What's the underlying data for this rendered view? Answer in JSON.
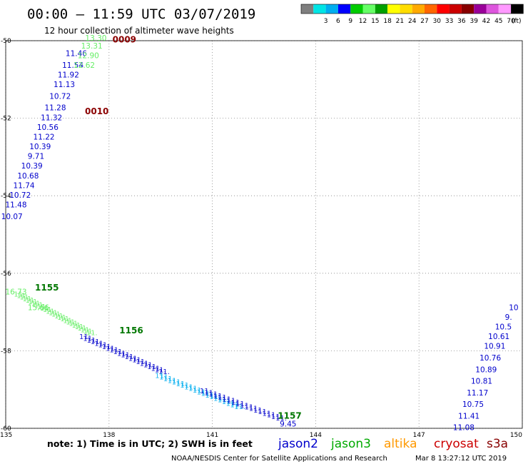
{
  "header": {
    "title": "00:00 – 11:59 UTC 03/07/2019",
    "subtitle": "12 hour collection of altimeter wave heights"
  },
  "legend": {
    "unit": "(ft)",
    "bins": [
      {
        "label": "",
        "color": "#7f7f7f"
      },
      {
        "label": "3",
        "color": "#00e5e5"
      },
      {
        "label": "6",
        "color": "#00aeef"
      },
      {
        "label": "9",
        "color": "#0000ff"
      },
      {
        "label": "12",
        "color": "#00cc00"
      },
      {
        "label": "15",
        "color": "#66ff66"
      },
      {
        "label": "18",
        "color": "#00a000"
      },
      {
        "label": "21",
        "color": "#ffff00"
      },
      {
        "label": "24",
        "color": "#ffdd00"
      },
      {
        "label": "27",
        "color": "#ffaa00"
      },
      {
        "label": "30",
        "color": "#ff6600"
      },
      {
        "label": "33",
        "color": "#ff0000"
      },
      {
        "label": "36",
        "color": "#cc0000"
      },
      {
        "label": "39",
        "color": "#880000"
      },
      {
        "label": "42",
        "color": "#990099"
      },
      {
        "label": "45",
        "color": "#dd55dd"
      },
      {
        "label": "70",
        "color": "#ff99ff"
      },
      {
        "label": "",
        "color": "#000000"
      }
    ]
  },
  "axes": {
    "lon_labels": [
      "135",
      "138",
      "141",
      "144",
      "147",
      "150"
    ],
    "lat_labels": [
      "-50",
      "-52",
      "-54",
      "-56",
      "-58",
      "-60"
    ],
    "lon_range": [
      135,
      150
    ],
    "lat_range": [
      -60,
      -50
    ]
  },
  "tracks": [
    {
      "color": "#0000cc",
      "points": [
        {
          "lat": -50.4,
          "lon": 137.05,
          "value": "11.46"
        },
        {
          "lat": -50.7,
          "lon": 136.95,
          "value": "11.54"
        },
        {
          "lat": -50.95,
          "lon": 136.82,
          "value": "11.92"
        },
        {
          "lat": -51.2,
          "lon": 136.7,
          "value": "11.13"
        },
        {
          "lat": -51.5,
          "lon": 136.58,
          "value": "10.72"
        },
        {
          "lat": -51.8,
          "lon": 136.44,
          "value": "11.28"
        },
        {
          "lat": -52.05,
          "lon": 136.33,
          "value": "11.32"
        },
        {
          "lat": -52.3,
          "lon": 136.22,
          "value": "10.56"
        },
        {
          "lat": -52.55,
          "lon": 136.11,
          "value": "11.22"
        },
        {
          "lat": -52.8,
          "lon": 136.0,
          "value": "10.39"
        },
        {
          "lat": -53.05,
          "lon": 135.88,
          "value": "9.71"
        },
        {
          "lat": -53.3,
          "lon": 135.76,
          "value": "10.39"
        },
        {
          "lat": -53.55,
          "lon": 135.65,
          "value": "10.68"
        },
        {
          "lat": -53.8,
          "lon": 135.53,
          "value": "11.74"
        },
        {
          "lat": -54.05,
          "lon": 135.42,
          "value": "10.72"
        },
        {
          "lat": -54.3,
          "lon": 135.3,
          "value": "11.48"
        },
        {
          "lat": -54.6,
          "lon": 135.18,
          "value": "10.07"
        }
      ]
    },
    {
      "color": "#66ee66",
      "points": [
        {
          "lat": -50.0,
          "lon": 137.62,
          "value": "13.30"
        },
        {
          "lat": -50.2,
          "lon": 137.5,
          "value": "13.31"
        },
        {
          "lat": -50.45,
          "lon": 137.4,
          "value": "12.90"
        },
        {
          "lat": -50.7,
          "lon": 137.28,
          "value": "12.62"
        }
      ]
    },
    {
      "color": "#66ee66",
      "points": [
        {
          "lat": -56.55,
          "lon": 135.3,
          "value": "16.73"
        },
        {
          "lat": -56.95,
          "lon": 135.95,
          "value": "15.66"
        }
      ]
    },
    {
      "color": "#0000cc",
      "points": [
        {
          "lat": -60.05,
          "lon": 148.3,
          "value": "11.08"
        },
        {
          "lat": -59.75,
          "lon": 148.45,
          "value": "11.41"
        },
        {
          "lat": -59.45,
          "lon": 148.57,
          "value": "10.75"
        },
        {
          "lat": -59.15,
          "lon": 148.7,
          "value": "11.17"
        },
        {
          "lat": -58.85,
          "lon": 148.82,
          "value": "10.81"
        },
        {
          "lat": -58.55,
          "lon": 148.95,
          "value": "10.89"
        },
        {
          "lat": -58.25,
          "lon": 149.07,
          "value": "10.76"
        },
        {
          "lat": -57.95,
          "lon": 149.2,
          "value": "10.91"
        },
        {
          "lat": -57.7,
          "lon": 149.32,
          "value": "10.61"
        },
        {
          "lat": -57.45,
          "lon": 149.45,
          "value": "10.5"
        },
        {
          "lat": -57.2,
          "lon": 149.6,
          "value": "9."
        },
        {
          "lat": -56.95,
          "lon": 149.75,
          "value": "10"
        }
      ]
    },
    {
      "color": "#0000cc",
      "points": [
        {
          "lat": -59.95,
          "lon": 143.2,
          "value": "9.45"
        }
      ]
    }
  ],
  "time_labels": [
    {
      "lat": -50.05,
      "lon": 138.1,
      "text": "0009",
      "color": "#8b0000"
    },
    {
      "lat": -51.9,
      "lon": 137.3,
      "text": "0010",
      "color": "#8b0000"
    },
    {
      "lat": -56.45,
      "lon": 135.85,
      "text": "1155",
      "color": "#007700"
    },
    {
      "lat": -57.55,
      "lon": 138.3,
      "text": "1156",
      "color": "#007700"
    },
    {
      "lat": -59.75,
      "lon": 142.9,
      "text": "1157",
      "color": "#007700"
    }
  ],
  "footer": {
    "note": "note:  1) Time is in UTC;  2) SWH is in feet",
    "satellites": [
      {
        "name": "jason2",
        "color": "#0000cc"
      },
      {
        "name": "jason3",
        "color": "#00aa00"
      },
      {
        "name": "altika",
        "color": "#ff9900"
      },
      {
        "name": "cryosat",
        "color": "#cc0000"
      },
      {
        "name": "s3a",
        "color": "#880000"
      }
    ],
    "credit": "NOAA/NESDIS Center for Satellite Applications and Research",
    "timestamp": "Mar  8 13:27:12 UTC 2019"
  }
}
